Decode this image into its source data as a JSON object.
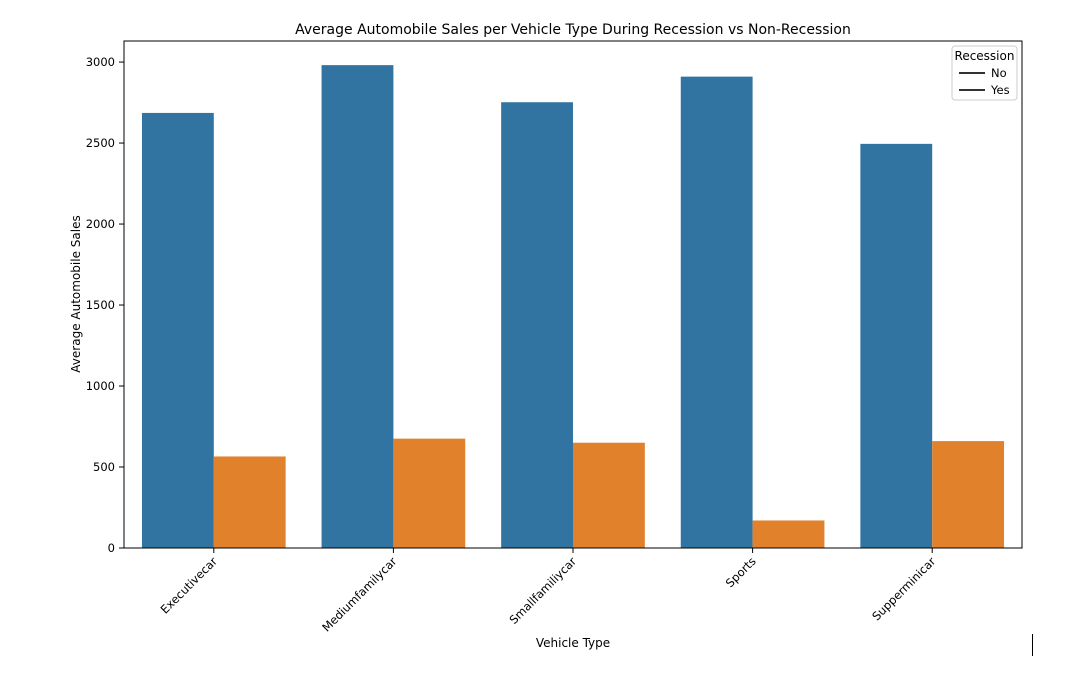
{
  "chart_data": {
    "type": "bar",
    "title": "Average Automobile Sales per Vehicle Type During Recession vs Non-Recession",
    "xlabel": "Vehicle Type",
    "ylabel": "Average Automobile Sales",
    "categories": [
      "Executivecar",
      "Mediumfamilycar",
      "Smallfamiliycar",
      "Sports",
      "Supperminicar"
    ],
    "series": [
      {
        "name": "No",
        "values": [
          2686,
          2981,
          2752,
          2910,
          2495
        ],
        "color": "#3274a1"
      },
      {
        "name": "Yes",
        "values": [
          565,
          675,
          650,
          170,
          660
        ],
        "color": "#e1812c"
      }
    ],
    "yticks": [
      0,
      500,
      1000,
      1500,
      2000,
      2500,
      3000
    ],
    "ylim": [
      0,
      3130
    ],
    "grid": false,
    "legend": {
      "title": "Recession",
      "placement": "top-right"
    }
  }
}
